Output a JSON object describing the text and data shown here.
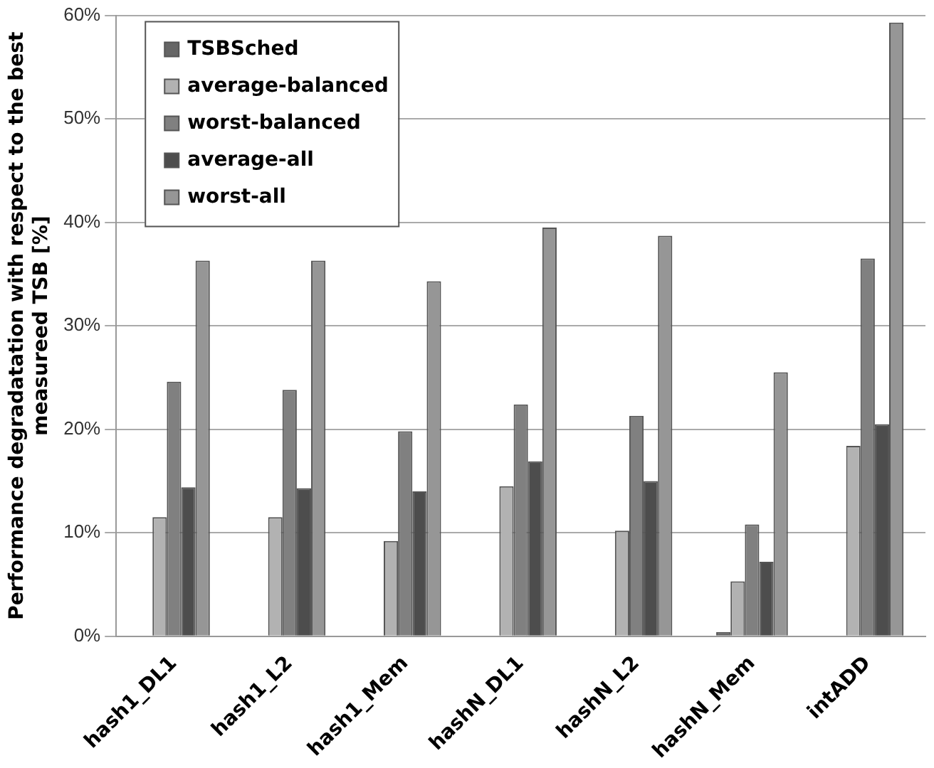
{
  "chart_data": {
    "type": "bar",
    "ylabel": "Performance degradatation with respect to the best measureed TSB [%]",
    "categories": [
      "hash1_DL1",
      "hash1_L2",
      "hash1_Mem",
      "hashN_DL1",
      "hashN_L2",
      "hashN_Mem",
      "intADD"
    ],
    "series": [
      {
        "name": "TSBSched",
        "color": "#666666",
        "values": [
          0,
          0,
          0,
          0,
          0,
          0.4,
          0
        ]
      },
      {
        "name": "average-balanced",
        "color": "#b2b2b2",
        "values": [
          11.5,
          11.5,
          9.2,
          14.5,
          10.2,
          5.3,
          18.4
        ]
      },
      {
        "name": "worst-balanced",
        "color": "#808080",
        "values": [
          24.6,
          23.8,
          19.8,
          22.4,
          21.3,
          10.8,
          36.5
        ]
      },
      {
        "name": "average-all",
        "color": "#4d4d4d",
        "values": [
          14.4,
          14.3,
          14.0,
          16.9,
          15.0,
          7.2,
          20.5
        ]
      },
      {
        "name": "worst-all",
        "color": "#969696",
        "values": [
          36.3,
          36.3,
          34.3,
          39.5,
          38.7,
          25.5,
          59.3
        ]
      }
    ],
    "ylim": [
      0,
      60
    ],
    "yticks": [
      {
        "value": 0,
        "label": "0%"
      },
      {
        "value": 10,
        "label": "10%"
      },
      {
        "value": 20,
        "label": "20%"
      },
      {
        "value": 30,
        "label": "30%"
      },
      {
        "value": 40,
        "label": "40%"
      },
      {
        "value": 50,
        "label": "50%"
      },
      {
        "value": 60,
        "label": "60%"
      }
    ],
    "grid": "y",
    "legend": "top left"
  }
}
